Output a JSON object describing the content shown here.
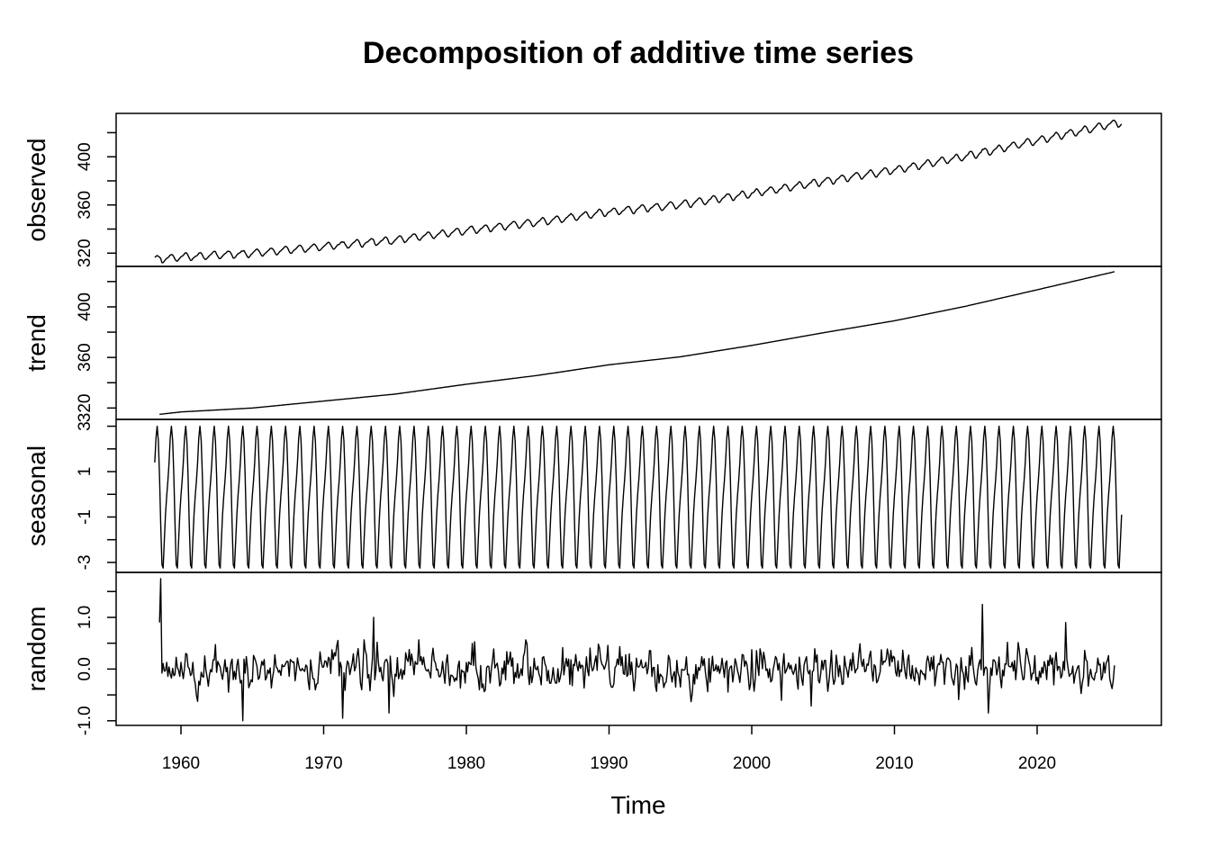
{
  "chart_data": {
    "type": "line",
    "title": "Decomposition of additive time series",
    "xlabel": "Time",
    "xlim": [
      1955.5,
      2028.8
    ],
    "x_ticks": [
      1960,
      1970,
      1980,
      1990,
      2000,
      2010,
      2020
    ],
    "x_tick_labels": [
      "1960",
      "1970",
      "1980",
      "1990",
      "2000",
      "2010",
      "2020"
    ],
    "frequency": 12,
    "series_start": 1958.1667,
    "series_end": 2026.0,
    "trend_start": 1958.5,
    "trend_end": 2025.5,
    "panels": [
      {
        "name": "observed",
        "ylabel": "observed",
        "ylim": [
          309,
          436
        ],
        "ticks": [
          320,
          340,
          360,
          380,
          400,
          420
        ],
        "tick_labels": [
          "320",
          "",
          "360",
          "",
          "400",
          ""
        ]
      },
      {
        "name": "trend",
        "ylabel": "trend",
        "ylim": [
          311,
          432
        ],
        "ticks": [
          320,
          340,
          360,
          380,
          400,
          420
        ],
        "tick_labels": [
          "320",
          "",
          "360",
          "",
          "400",
          ""
        ]
      },
      {
        "name": "seasonal",
        "ylabel": "seasonal",
        "ylim": [
          -3.44,
          3.3
        ],
        "ticks": [
          -3,
          -2,
          -1,
          0,
          1,
          2,
          3
        ],
        "tick_labels": [
          "-3",
          "",
          "-1",
          "",
          "1",
          "",
          "3"
        ]
      },
      {
        "name": "random",
        "ylabel": "random",
        "ylim": [
          -1.09,
          1.87
        ],
        "ticks": [
          -1.0,
          -0.5,
          0.0,
          0.5,
          1.0,
          1.5
        ],
        "tick_labels": [
          "-1.0",
          "",
          "0.0",
          "",
          "1.0",
          ""
        ]
      }
    ],
    "trend_points": {
      "x": [
        1958.5,
        1960,
        1965,
        1970,
        1975,
        1980,
        1985,
        1990,
        1995,
        2000,
        2005,
        2010,
        2015,
        2020,
        2025.5
      ],
      "y": [
        315.0,
        316.9,
        320.0,
        325.5,
        331.0,
        338.8,
        345.8,
        354.2,
        360.5,
        369.5,
        379.5,
        389.0,
        400.5,
        413.5,
        428.0
      ]
    },
    "seasonal_monthly": [
      -0.05,
      0.6,
      1.4,
      2.5,
      3.0,
      2.35,
      0.8,
      -1.3,
      -3.1,
      -3.25,
      -2.05,
      -0.9
    ],
    "random": {
      "sd": 0.22,
      "seed": 20,
      "spikes": [
        {
          "x": 1958.5,
          "y": 0.9
        },
        {
          "x": 1958.58,
          "y": 1.75
        },
        {
          "x": 1964.3,
          "y": -1.0
        },
        {
          "x": 1971.3,
          "y": -0.95
        },
        {
          "x": 1973.5,
          "y": 1.0
        },
        {
          "x": 1974.6,
          "y": -0.85
        },
        {
          "x": 2016.2,
          "y": 1.25
        },
        {
          "x": 2016.6,
          "y": -0.85
        },
        {
          "x": 2022.0,
          "y": 0.9
        }
      ]
    }
  }
}
